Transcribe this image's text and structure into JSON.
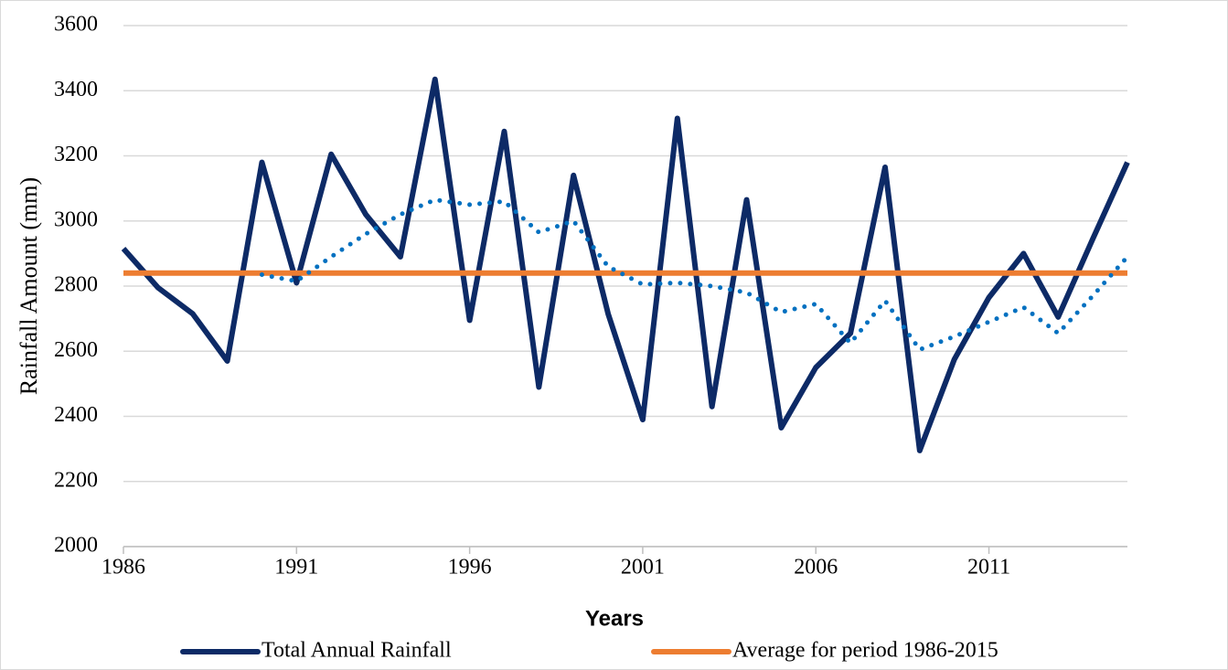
{
  "chart_data": {
    "type": "line",
    "x_label": "Years",
    "y_label": "Rainfall Amount (mm)",
    "x": [
      1986,
      1987,
      1988,
      1989,
      1990,
      1991,
      1992,
      1993,
      1994,
      1995,
      1996,
      1997,
      1998,
      1999,
      2000,
      2001,
      2002,
      2003,
      2004,
      2005,
      2006,
      2007,
      2008,
      2009,
      2010,
      2011,
      2012,
      2013,
      2014,
      2015
    ],
    "xlim": [
      1986,
      2015
    ],
    "xticks": [
      1986,
      1991,
      1996,
      2001,
      2006,
      2011
    ],
    "ylim": [
      2000,
      3600
    ],
    "yticks": [
      2000,
      2200,
      2400,
      2600,
      2800,
      3000,
      3200,
      3400,
      3600
    ],
    "grid": true,
    "legend": "bottom",
    "series": [
      {
        "name": "Total Annual Rainfall",
        "color": "#0d2a66",
        "style": "solid",
        "values": [
          2915,
          2795,
          2715,
          2570,
          3180,
          2810,
          3205,
          3020,
          2890,
          3435,
          2695,
          3275,
          2490,
          3140,
          2715,
          2390,
          3315,
          2430,
          3065,
          2365,
          2550,
          2655,
          3165,
          2295,
          2575,
          2765,
          2900,
          2705,
          2945,
          3180
        ]
      },
      {
        "name": "Average for period 1986-2015",
        "color": "#ed7d31",
        "style": "solid",
        "values": [
          2840,
          2840,
          2840,
          2840,
          2840,
          2840,
          2840,
          2840,
          2840,
          2840,
          2840,
          2840,
          2840,
          2840,
          2840,
          2840,
          2840,
          2840,
          2840,
          2840,
          2840,
          2840,
          2840,
          2840,
          2840,
          2840,
          2840,
          2840,
          2840,
          2840
        ]
      },
      {
        "color": "#0070c0",
        "style": "dotted",
        "values": [
          null,
          null,
          null,
          null,
          2835,
          2815,
          2890,
          2960,
          3020,
          3065,
          3050,
          3060,
          2965,
          3000,
          2860,
          2805,
          2810,
          2800,
          2780,
          2720,
          2745,
          2625,
          2755,
          2605,
          2645,
          2690,
          2735,
          2655,
          2770,
          2890
        ]
      }
    ]
  }
}
